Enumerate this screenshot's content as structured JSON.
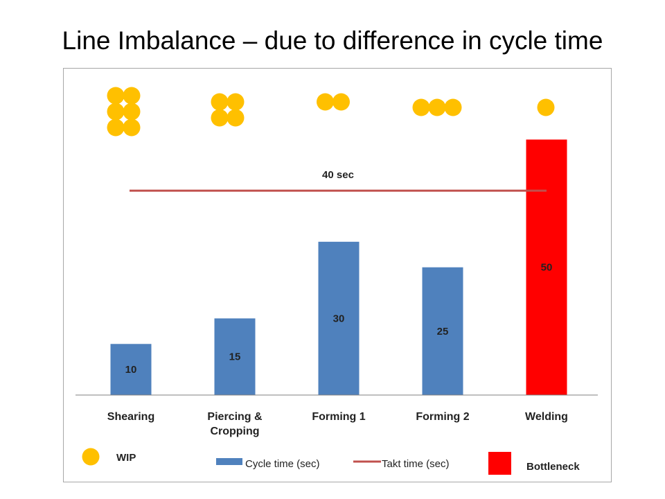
{
  "slide": {
    "title": "Line Imbalance – due to difference in cycle time"
  },
  "colors": {
    "bar": "#4f81bd",
    "bottleneck": "#ff0000",
    "takt_line": "#c0504d",
    "wip": "#ffc000",
    "axis": "#7f7f7f"
  },
  "chart_data": {
    "type": "bar",
    "categories": [
      "Shearing",
      "Piercing & Cropping",
      "Forming 1",
      "Forming 2",
      "Welding"
    ],
    "category_lines": [
      [
        "Shearing"
      ],
      [
        "Piercing &",
        "Cropping"
      ],
      [
        "Forming 1"
      ],
      [
        "Forming 2"
      ],
      [
        "Welding"
      ]
    ],
    "series": [
      {
        "name": "Cycle time (sec)",
        "values": [
          10,
          15,
          30,
          25,
          50
        ]
      }
    ],
    "bottleneck_index": 4,
    "data_labels": [
      "10",
      "15",
      "30",
      "25",
      "50"
    ],
    "takt_time": {
      "name": "Takt time (sec)",
      "value": 40,
      "label": "40 sec"
    },
    "wip_counts": [
      6,
      4,
      2,
      3,
      1
    ],
    "ylim": [
      0,
      51
    ],
    "grid": false,
    "legend": {
      "position": "bottom",
      "wip_label": "WIP",
      "cycle_label": "Cycle time (sec)",
      "takt_label": "Takt time (sec)",
      "bottleneck_label": "Bottleneck"
    }
  }
}
